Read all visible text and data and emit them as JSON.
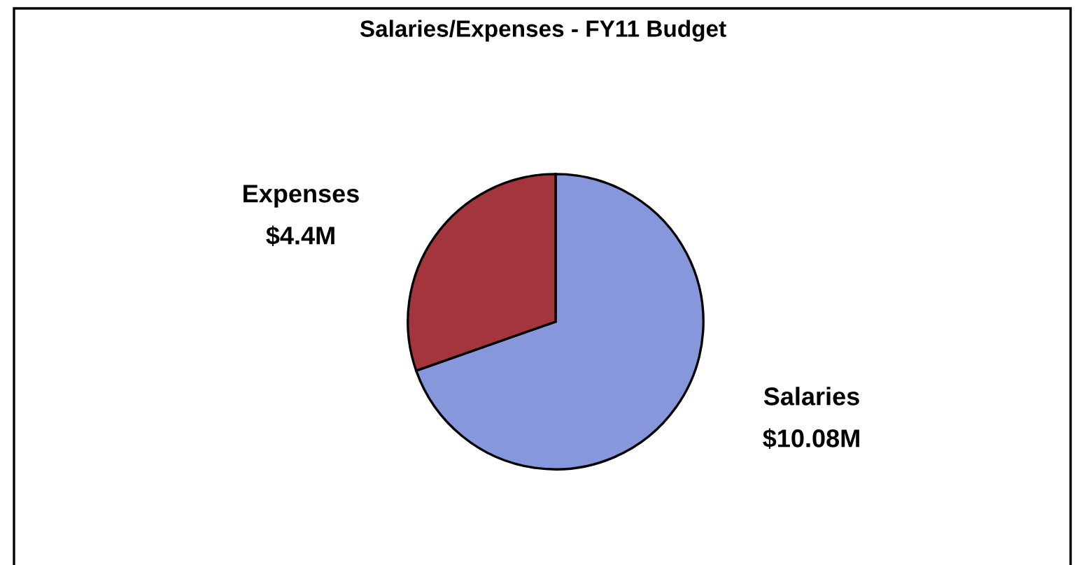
{
  "chart_data": {
    "type": "pie",
    "title": "Salaries/Expenses - FY11 Budget",
    "categories": [
      "Salaries",
      "Expenses"
    ],
    "values": [
      10.08,
      4.4
    ],
    "value_labels": [
      "$10.08M",
      "$4.4M"
    ],
    "colors": [
      "#8797dc",
      "#a3353d"
    ],
    "legend": false
  }
}
